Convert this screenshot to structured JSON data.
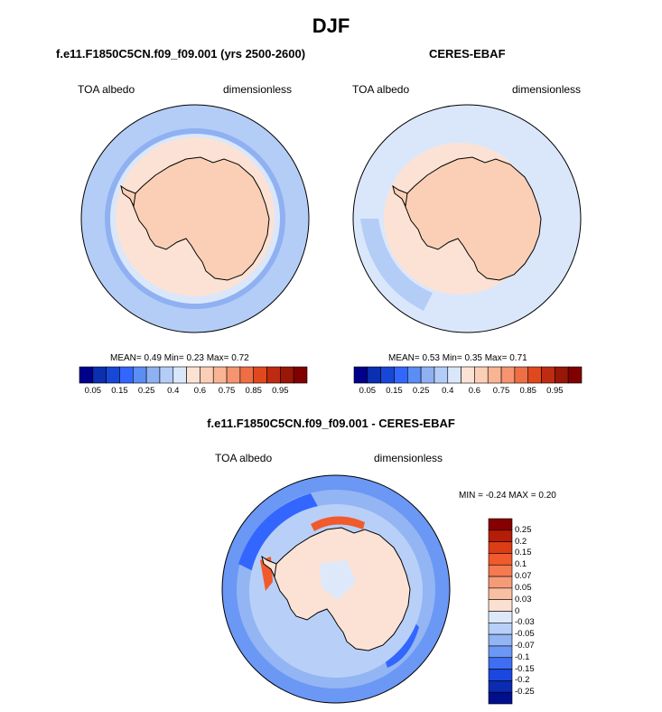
{
  "title": "DJF",
  "panels": [
    {
      "title": "f.e11.F1850C5CN.f09_f09.001 (yrs 2500-2600)",
      "left_label": "TOA albedo",
      "right_label": "dimensionless",
      "stats": "MEAN=  0.49  Min=  0.23  Max=  0.72"
    },
    {
      "title": "CERES-EBAF",
      "left_label": "TOA albedo",
      "right_label": "dimensionless",
      "stats": "MEAN=  0.53  Min=  0.35  Max=  0.71"
    },
    {
      "title": "f.e11.F1850C5CN.f09_f09.001 - CERES-EBAF",
      "left_label": "TOA albedo",
      "right_label": "dimensionless",
      "stats": "MIN =  -0.24 MAX =   0.20"
    }
  ],
  "colorbar_horizontal": {
    "colors": [
      "#00008b",
      "#0a2fb0",
      "#1747d6",
      "#3366ff",
      "#5a8ef5",
      "#8fb1f2",
      "#b4cdf7",
      "#dae7fb",
      "#fbe2d5",
      "#fbcfb5",
      "#f9b494",
      "#f5946e",
      "#ee6f45",
      "#e0481e",
      "#bf2b10",
      "#981707",
      "#800000"
    ],
    "tick_labels": [
      "0.05",
      "0.15",
      "0.25",
      "0.4",
      "0.6",
      "0.75",
      "0.85",
      "0.95"
    ]
  },
  "colorbar_vertical": {
    "colors": [
      "#850000",
      "#b51d09",
      "#dc3d15",
      "#f15a2c",
      "#f57a50",
      "#f69b77",
      "#f8bfa2",
      "#fbe0d2",
      "#dde9fb",
      "#b8d0f8",
      "#93b5f3",
      "#6b97f5",
      "#3f6ef2",
      "#1a47dd",
      "#0b2bb0",
      "#00108c"
    ],
    "tick_labels": [
      "0.25",
      "0.2",
      "0.15",
      "0.1",
      "0.07",
      "0.05",
      "0.03",
      "0",
      "-0.03",
      "-0.05",
      "-0.07",
      "-0.1",
      "-0.15",
      "-0.2",
      "-0.25"
    ]
  },
  "map_colors": {
    "ocean_blue": "#b4cdf7",
    "ocean_light": "#dae7fb",
    "ocean_mid": "#8fb1f2",
    "land_peach": "#fbcfb5",
    "land_light": "#fbe2d5",
    "diff_blue_dark": "#3366ff",
    "diff_blue_mid": "#6b97f5",
    "diff_red": "#f15a2c",
    "coastline": "#000000"
  }
}
